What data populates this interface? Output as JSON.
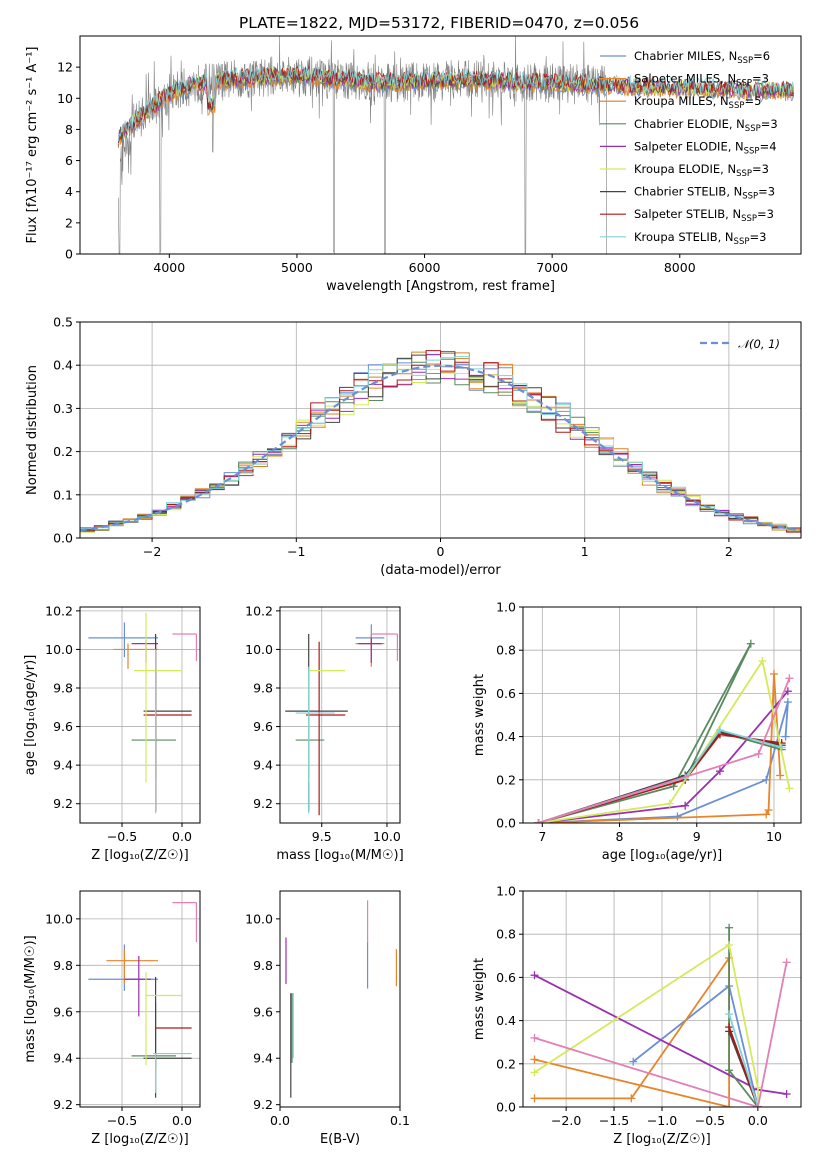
{
  "title": "PLATE=1822, MJD=53172, FIBERID=0470, z=0.056",
  "colors": {
    "chabrier_miles": "#6a8fd8",
    "salpeter_miles": "#e6852a",
    "kroupa_miles": "#d9821f",
    "chabrier_elodie": "#5a8a60",
    "salpeter_elodie": "#9a2fb0",
    "kroupa_elodie": "#d4ea5a",
    "chabrier_stelib": "#444444",
    "salpeter_stelib": "#b01818",
    "kroupa_stelib": "#7fd3d8",
    "pink": "#e37fb5",
    "obs": "#808080"
  },
  "chart_data": [
    {
      "type": "line",
      "panel": "spectrum",
      "title": "PLATE=1822, MJD=53172, FIBERID=0470, z=0.056",
      "xlabel": "wavelength [Angstrom, rest frame]",
      "ylabel": "Flux [fλ10⁻¹⁷ erg cm⁻² s⁻¹ A⁻¹]",
      "xlim": [
        3300,
        8950
      ],
      "ylim": [
        0,
        14
      ],
      "xticks": [
        "4000",
        "5000",
        "6000",
        "7000",
        "8000"
      ],
      "yticks": [
        "0",
        "2",
        "4",
        "6",
        "8",
        "10",
        "12"
      ],
      "grid": false,
      "legend_position": "top-right",
      "legend": [
        {
          "label": "Chabrier MILES, N",
          "sub": "SSP",
          "suffix": "=6",
          "color": "#6a8fd8"
        },
        {
          "label": "Salpeter MILES, N",
          "sub": "SSP",
          "suffix": "=3",
          "color": "#e6852a"
        },
        {
          "label": "Kroupa MILES, N",
          "sub": "SSP",
          "suffix": "=5",
          "color": "#d9821f"
        },
        {
          "label": "Chabrier ELODIE, N",
          "sub": "SSP",
          "suffix": "=3",
          "color": "#5a8a60"
        },
        {
          "label": "Salpeter ELODIE, N",
          "sub": "SSP",
          "suffix": "=4",
          "color": "#9a2fb0"
        },
        {
          "label": "Kroupa ELODIE, N",
          "sub": "SSP",
          "suffix": "=3",
          "color": "#d4ea5a"
        },
        {
          "label": "Chabrier STELIB, N",
          "sub": "SSP",
          "suffix": "=3",
          "color": "#444444"
        },
        {
          "label": "Salpeter STELIB, N",
          "sub": "SSP",
          "suffix": "=3",
          "color": "#b01818"
        },
        {
          "label": "Kroupa STELIB, N",
          "sub": "SSP",
          "suffix": "=3",
          "color": "#7fd3d8"
        }
      ],
      "continuum": {
        "x": [
          3600,
          3800,
          4000,
          4200,
          4500,
          4800,
          5000,
          5300,
          5600,
          6000,
          6400,
          6800,
          7200,
          7500,
          7800,
          8200,
          8600,
          8900
        ],
        "y": [
          7.5,
          9.0,
          10.3,
          10.9,
          11.2,
          11.4,
          11.5,
          11.2,
          11.0,
          11.1,
          11.2,
          11.0,
          10.9,
          10.8,
          10.7,
          10.6,
          10.5,
          10.5
        ]
      },
      "absorption_features": [
        {
          "x": 3610,
          "y": 0
        },
        {
          "x": 3930,
          "y": 0
        },
        {
          "x": 4340,
          "y": 6.5
        },
        {
          "x": 5290,
          "y": 0
        },
        {
          "x": 5690,
          "y": 0
        },
        {
          "x": 6790,
          "y": 0
        },
        {
          "x": 7430,
          "y": 0
        }
      ]
    },
    {
      "type": "line",
      "panel": "residual-histogram",
      "xlabel": "(data-model)/error",
      "ylabel": "Normed distribution",
      "xlim": [
        -2.5,
        2.5
      ],
      "ylim": [
        0,
        0.5
      ],
      "xticks": [
        "−2",
        "−1",
        "0",
        "1",
        "2"
      ],
      "yticks": [
        "0.0",
        "0.1",
        "0.2",
        "0.3",
        "0.4",
        "0.5"
      ],
      "grid": true,
      "legend_position": "top-right",
      "legend": [
        {
          "label": "𝒩(0, 1)",
          "color": "#6a8fd8",
          "style": "dashed"
        }
      ],
      "bin_width": 0.1
    },
    {
      "type": "scatter",
      "panel": "age-vs-Z",
      "xlabel": "Z [log₁₀(Z/Z☉)]",
      "ylabel": "age  [log₁₀(age/yr)]",
      "xlim": [
        -0.85,
        0.15
      ],
      "ylim": [
        9.1,
        10.22
      ],
      "xticks": [
        "−0.5",
        "0.0"
      ],
      "yticks": [
        "9.2",
        "9.4",
        "9.6",
        "9.8",
        "10.0",
        "10.2"
      ],
      "grid": true,
      "points": [
        {
          "x": -0.48,
          "y": 10.06,
          "xl": 0.3,
          "xh": 0.28,
          "yl": 0.1,
          "yh": 0.08,
          "c": "#6a8fd8"
        },
        {
          "x": -0.45,
          "y": 10.0,
          "xl": 0.12,
          "xh": 0.25,
          "yl": 0.1,
          "yh": 0.03,
          "c": "#e6852a"
        },
        {
          "x": -0.3,
          "y": 10.03,
          "xl": 0.12,
          "xh": 0.1,
          "yl": 0.1,
          "yh": 0.02,
          "c": "#9a2fb0"
        },
        {
          "x": -0.22,
          "y": 9.53,
          "xl": 0.2,
          "xh": 0.17,
          "yl": 0.2,
          "yh": 0.36,
          "c": "#5a8a60"
        },
        {
          "x": -0.22,
          "y": 9.68,
          "xl": 0.1,
          "xh": 0.3,
          "yl": 0.52,
          "yh": 0.4,
          "c": "#444444"
        },
        {
          "x": -0.22,
          "y": 9.66,
          "xl": 0.1,
          "xh": 0.3,
          "yl": 0.5,
          "yh": 0.38,
          "c": "#b01818"
        },
        {
          "x": -0.3,
          "y": 9.89,
          "xl": 0.1,
          "xh": 0.3,
          "yl": 0.58,
          "yh": 0.3,
          "c": "#d4ea5a"
        },
        {
          "x": -0.22,
          "y": 9.9,
          "xl": 0.0,
          "xh": 0.0,
          "yl": 0.75,
          "yh": 0.1,
          "c": "#7fd3d8"
        },
        {
          "x": 0.12,
          "y": 10.08,
          "xl": 0.2,
          "xh": 0.0,
          "yl": 0.14,
          "yh": 0.0,
          "c": "#e37fb5"
        }
      ]
    },
    {
      "type": "scatter",
      "panel": "age-vs-mass",
      "xlabel": "mass [log₁₀(M/M☉)]",
      "ylabel": "",
      "xlim": [
        9.18,
        10.1
      ],
      "ylim": [
        9.1,
        10.22
      ],
      "xticks": [
        "9.5",
        "10.0"
      ],
      "yticks": [
        "9.2",
        "9.4",
        "9.6",
        "9.8",
        "10.0",
        "10.2"
      ],
      "grid": true,
      "points": [
        {
          "x": 9.88,
          "y": 10.06,
          "xl": 0.12,
          "xh": 0.1,
          "yl": 0.1,
          "yh": 0.07,
          "c": "#6a8fd8"
        },
        {
          "x": 9.88,
          "y": 10.03,
          "xl": 0.12,
          "xh": 0.1,
          "yl": 0.12,
          "yh": 0.05,
          "c": "#e6852a"
        },
        {
          "x": 9.88,
          "y": 10.03,
          "xl": 0.1,
          "xh": 0.08,
          "yl": 0.1,
          "yh": 0.03,
          "c": "#9a2fb0"
        },
        {
          "x": 9.4,
          "y": 9.53,
          "xl": 0.1,
          "xh": 0.12,
          "yl": 0.2,
          "yh": 0.36,
          "c": "#5a8a60"
        },
        {
          "x": 9.4,
          "y": 9.68,
          "xl": 0.18,
          "xh": 0.3,
          "yl": 0.52,
          "yh": 0.4,
          "c": "#444444"
        },
        {
          "x": 9.48,
          "y": 9.66,
          "xl": 0.1,
          "xh": 0.2,
          "yl": 0.52,
          "yh": 0.38,
          "c": "#b01818"
        },
        {
          "x": 9.4,
          "y": 9.89,
          "xl": 0.0,
          "xh": 0.28,
          "yl": 0.58,
          "yh": 0.0,
          "c": "#d4ea5a"
        },
        {
          "x": 9.4,
          "y": 9.67,
          "xl": 0.1,
          "xh": 0.2,
          "yl": 0.52,
          "yh": 0.24,
          "c": "#7fd3d8"
        },
        {
          "x": 10.08,
          "y": 10.08,
          "xl": 0.2,
          "xh": 0.0,
          "yl": 0.14,
          "yh": 0.0,
          "c": "#e37fb5"
        }
      ]
    },
    {
      "type": "line",
      "panel": "weight-vs-age",
      "xlabel": "age  [log₁₀(age/yr)]",
      "ylabel": "mass weight",
      "xlim": [
        6.75,
        10.35
      ],
      "ylim": [
        0,
        1.0
      ],
      "xticks": [
        "7",
        "8",
        "9",
        "10"
      ],
      "yticks": [
        "0.0",
        "0.2",
        "0.4",
        "0.6",
        "0.8",
        "1.0"
      ],
      "grid": true,
      "series": [
        {
          "c": "#6a8fd8",
          "x": [
            6.95,
            8.75,
            9.9,
            10.18,
            10.15
          ],
          "y": [
            0.0,
            0.03,
            0.2,
            0.56,
            0.4
          ]
        },
        {
          "c": "#e6852a",
          "x": [
            6.95,
            9.9,
            9.93,
            10.0,
            10.08
          ],
          "y": [
            0.0,
            0.04,
            0.06,
            0.69,
            0.22
          ]
        },
        {
          "c": "#9a2fb0",
          "x": [
            6.95,
            8.85,
            9.3,
            10.18
          ],
          "y": [
            0.0,
            0.08,
            0.24,
            0.61
          ]
        },
        {
          "c": "#5a8a60",
          "x": [
            6.95,
            8.7,
            9.7,
            8.85,
            9.3,
            10.1
          ],
          "y": [
            0.0,
            0.17,
            0.83,
            0.2,
            0.42,
            0.34
          ]
        },
        {
          "c": "#444444",
          "x": [
            6.95,
            8.85,
            9.3,
            10.1
          ],
          "y": [
            0.0,
            0.22,
            0.42,
            0.36
          ]
        },
        {
          "c": "#b01818",
          "x": [
            6.95,
            8.85,
            9.3,
            10.1
          ],
          "y": [
            0.0,
            0.2,
            0.41,
            0.37
          ]
        },
        {
          "c": "#d4ea5a",
          "x": [
            6.95,
            8.65,
            9.85,
            10.2
          ],
          "y": [
            0.0,
            0.09,
            0.75,
            0.16
          ]
        },
        {
          "c": "#7fd3d8",
          "x": [
            6.95,
            8.85,
            9.3,
            10.1
          ],
          "y": [
            0.0,
            0.21,
            0.43,
            0.35
          ]
        },
        {
          "c": "#e37fb5",
          "x": [
            6.95,
            9.8,
            10.2
          ],
          "y": [
            0.0,
            0.32,
            0.67
          ]
        }
      ]
    },
    {
      "type": "scatter",
      "panel": "mass-vs-Z",
      "xlabel": "Z [log₁₀(Z/Z☉)]",
      "ylabel": "mass [log₁₀(M/M☉)]",
      "xlim": [
        -0.85,
        0.15
      ],
      "ylim": [
        9.19,
        10.12
      ],
      "xticks": [
        "−0.5",
        "0.0"
      ],
      "yticks": [
        "9.2",
        "9.4",
        "9.6",
        "9.8",
        "10.0"
      ],
      "grid": true,
      "points": [
        {
          "x": -0.48,
          "y": 9.74,
          "xl": 0.3,
          "xh": 0.28,
          "yl": 0.05,
          "yh": 0.15,
          "c": "#6a8fd8"
        },
        {
          "x": -0.48,
          "y": 9.82,
          "xl": 0.15,
          "xh": 0.28,
          "yl": 0.1,
          "yh": 0.05,
          "c": "#e6852a"
        },
        {
          "x": -0.36,
          "y": 9.74,
          "xl": 0.12,
          "xh": 0.1,
          "yl": 0.16,
          "yh": 0.1,
          "c": "#9a2fb0"
        },
        {
          "x": -0.22,
          "y": 9.41,
          "xl": 0.2,
          "xh": 0.17,
          "yl": 0.05,
          "yh": 0.23,
          "c": "#5a8a60"
        },
        {
          "x": -0.22,
          "y": 9.4,
          "xl": 0.1,
          "xh": 0.3,
          "yl": 0.17,
          "yh": 0.35,
          "c": "#444444"
        },
        {
          "x": -0.22,
          "y": 9.53,
          "xl": 0.0,
          "xh": 0.3,
          "yl": 0.0,
          "yh": 0.0,
          "c": "#b01818"
        },
        {
          "x": -0.3,
          "y": 9.67,
          "xl": 0.0,
          "xh": 0.3,
          "yl": 0.3,
          "yh": 0.1,
          "c": "#d4ea5a"
        },
        {
          "x": -0.22,
          "y": 9.42,
          "xl": 0.02,
          "xh": 0.3,
          "yl": 0.17,
          "yh": 0.0,
          "c": "#7fd3d8"
        },
        {
          "x": 0.12,
          "y": 10.07,
          "xl": 0.2,
          "xh": 0.0,
          "yl": 0.17,
          "yh": 0.0,
          "c": "#e37fb5"
        }
      ]
    },
    {
      "type": "scatter",
      "panel": "mass-vs-EBV",
      "xlabel": "E(B-V)",
      "ylabel": "",
      "xlim": [
        0.0,
        0.1
      ],
      "ylim": [
        9.19,
        10.12
      ],
      "xticks": [
        "0.0",
        "0.1"
      ],
      "yticks": [
        "9.2",
        "9.4",
        "9.6",
        "9.8",
        "10.0"
      ],
      "grid": false,
      "points": [
        {
          "x": 0.005,
          "y": 9.82,
          "yl": 0.1,
          "yh": 0.1,
          "c": "#9a2fb0"
        },
        {
          "x": 0.009,
          "y": 9.46,
          "yl": 0.23,
          "yh": 0.22,
          "c": "#444444"
        },
        {
          "x": 0.01,
          "y": 9.5,
          "yl": 0.12,
          "yh": 0.18,
          "c": "#5a8a60"
        },
        {
          "x": 0.011,
          "y": 9.48,
          "yl": 0.08,
          "yh": 0.2,
          "c": "#7fd3d8"
        },
        {
          "x": 0.073,
          "y": 9.8,
          "yl": 0.1,
          "yh": 0.1,
          "c": "#6a8fd8"
        },
        {
          "x": 0.073,
          "y": 10.0,
          "yl": 0.1,
          "yh": 0.08,
          "c": "#e37fb5"
        },
        {
          "x": 0.097,
          "y": 9.79,
          "yl": 0.08,
          "yh": 0.08,
          "c": "#e6852a"
        }
      ]
    },
    {
      "type": "line",
      "panel": "weight-vs-Z",
      "xlabel": "Z [log₁₀(Z/Z☉)]",
      "ylabel": "mass weight",
      "xlim": [
        -2.45,
        0.45
      ],
      "ylim": [
        0,
        1.0
      ],
      "xticks": [
        "−2.0",
        "−1.5",
        "−1.0",
        "−0.5",
        "0.0"
      ],
      "yticks": [
        "0.0",
        "0.2",
        "0.4",
        "0.6",
        "0.8",
        "1.0"
      ],
      "grid": true,
      "series": [
        {
          "c": "#6a8fd8",
          "x": [
            -1.3,
            -0.3,
            0.0
          ],
          "y": [
            0.21,
            0.56,
            0.0
          ]
        },
        {
          "c": "#e6852a",
          "x": [
            -2.33,
            -1.32,
            -0.3,
            -0.3,
            -2.33
          ],
          "y": [
            0.04,
            0.04,
            0.69,
            0.0,
            0.22
          ]
        },
        {
          "c": "#9a2fb0",
          "x": [
            -2.33,
            0.0,
            0.3
          ],
          "y": [
            0.61,
            0.08,
            0.06
          ]
        },
        {
          "c": "#5a8a60",
          "x": [
            -0.3,
            -0.3,
            0.0
          ],
          "y": [
            0.83,
            0.17,
            0.0
          ]
        },
        {
          "c": "#444444",
          "x": [
            -0.3,
            0.0
          ],
          "y": [
            0.35,
            0.0
          ]
        },
        {
          "c": "#b01818",
          "x": [
            -0.3,
            0.0
          ],
          "y": [
            0.37,
            0.0
          ]
        },
        {
          "c": "#d4ea5a",
          "x": [
            -2.33,
            -0.3,
            0.0,
            0.0
          ],
          "y": [
            0.16,
            0.75,
            0.09,
            0.0
          ]
        },
        {
          "c": "#7fd3d8",
          "x": [
            -0.3,
            0.0
          ],
          "y": [
            0.43,
            0.0
          ]
        },
        {
          "c": "#e37fb5",
          "x": [
            -2.33,
            0.0,
            0.3
          ],
          "y": [
            0.32,
            0.0,
            0.67
          ]
        }
      ]
    }
  ]
}
